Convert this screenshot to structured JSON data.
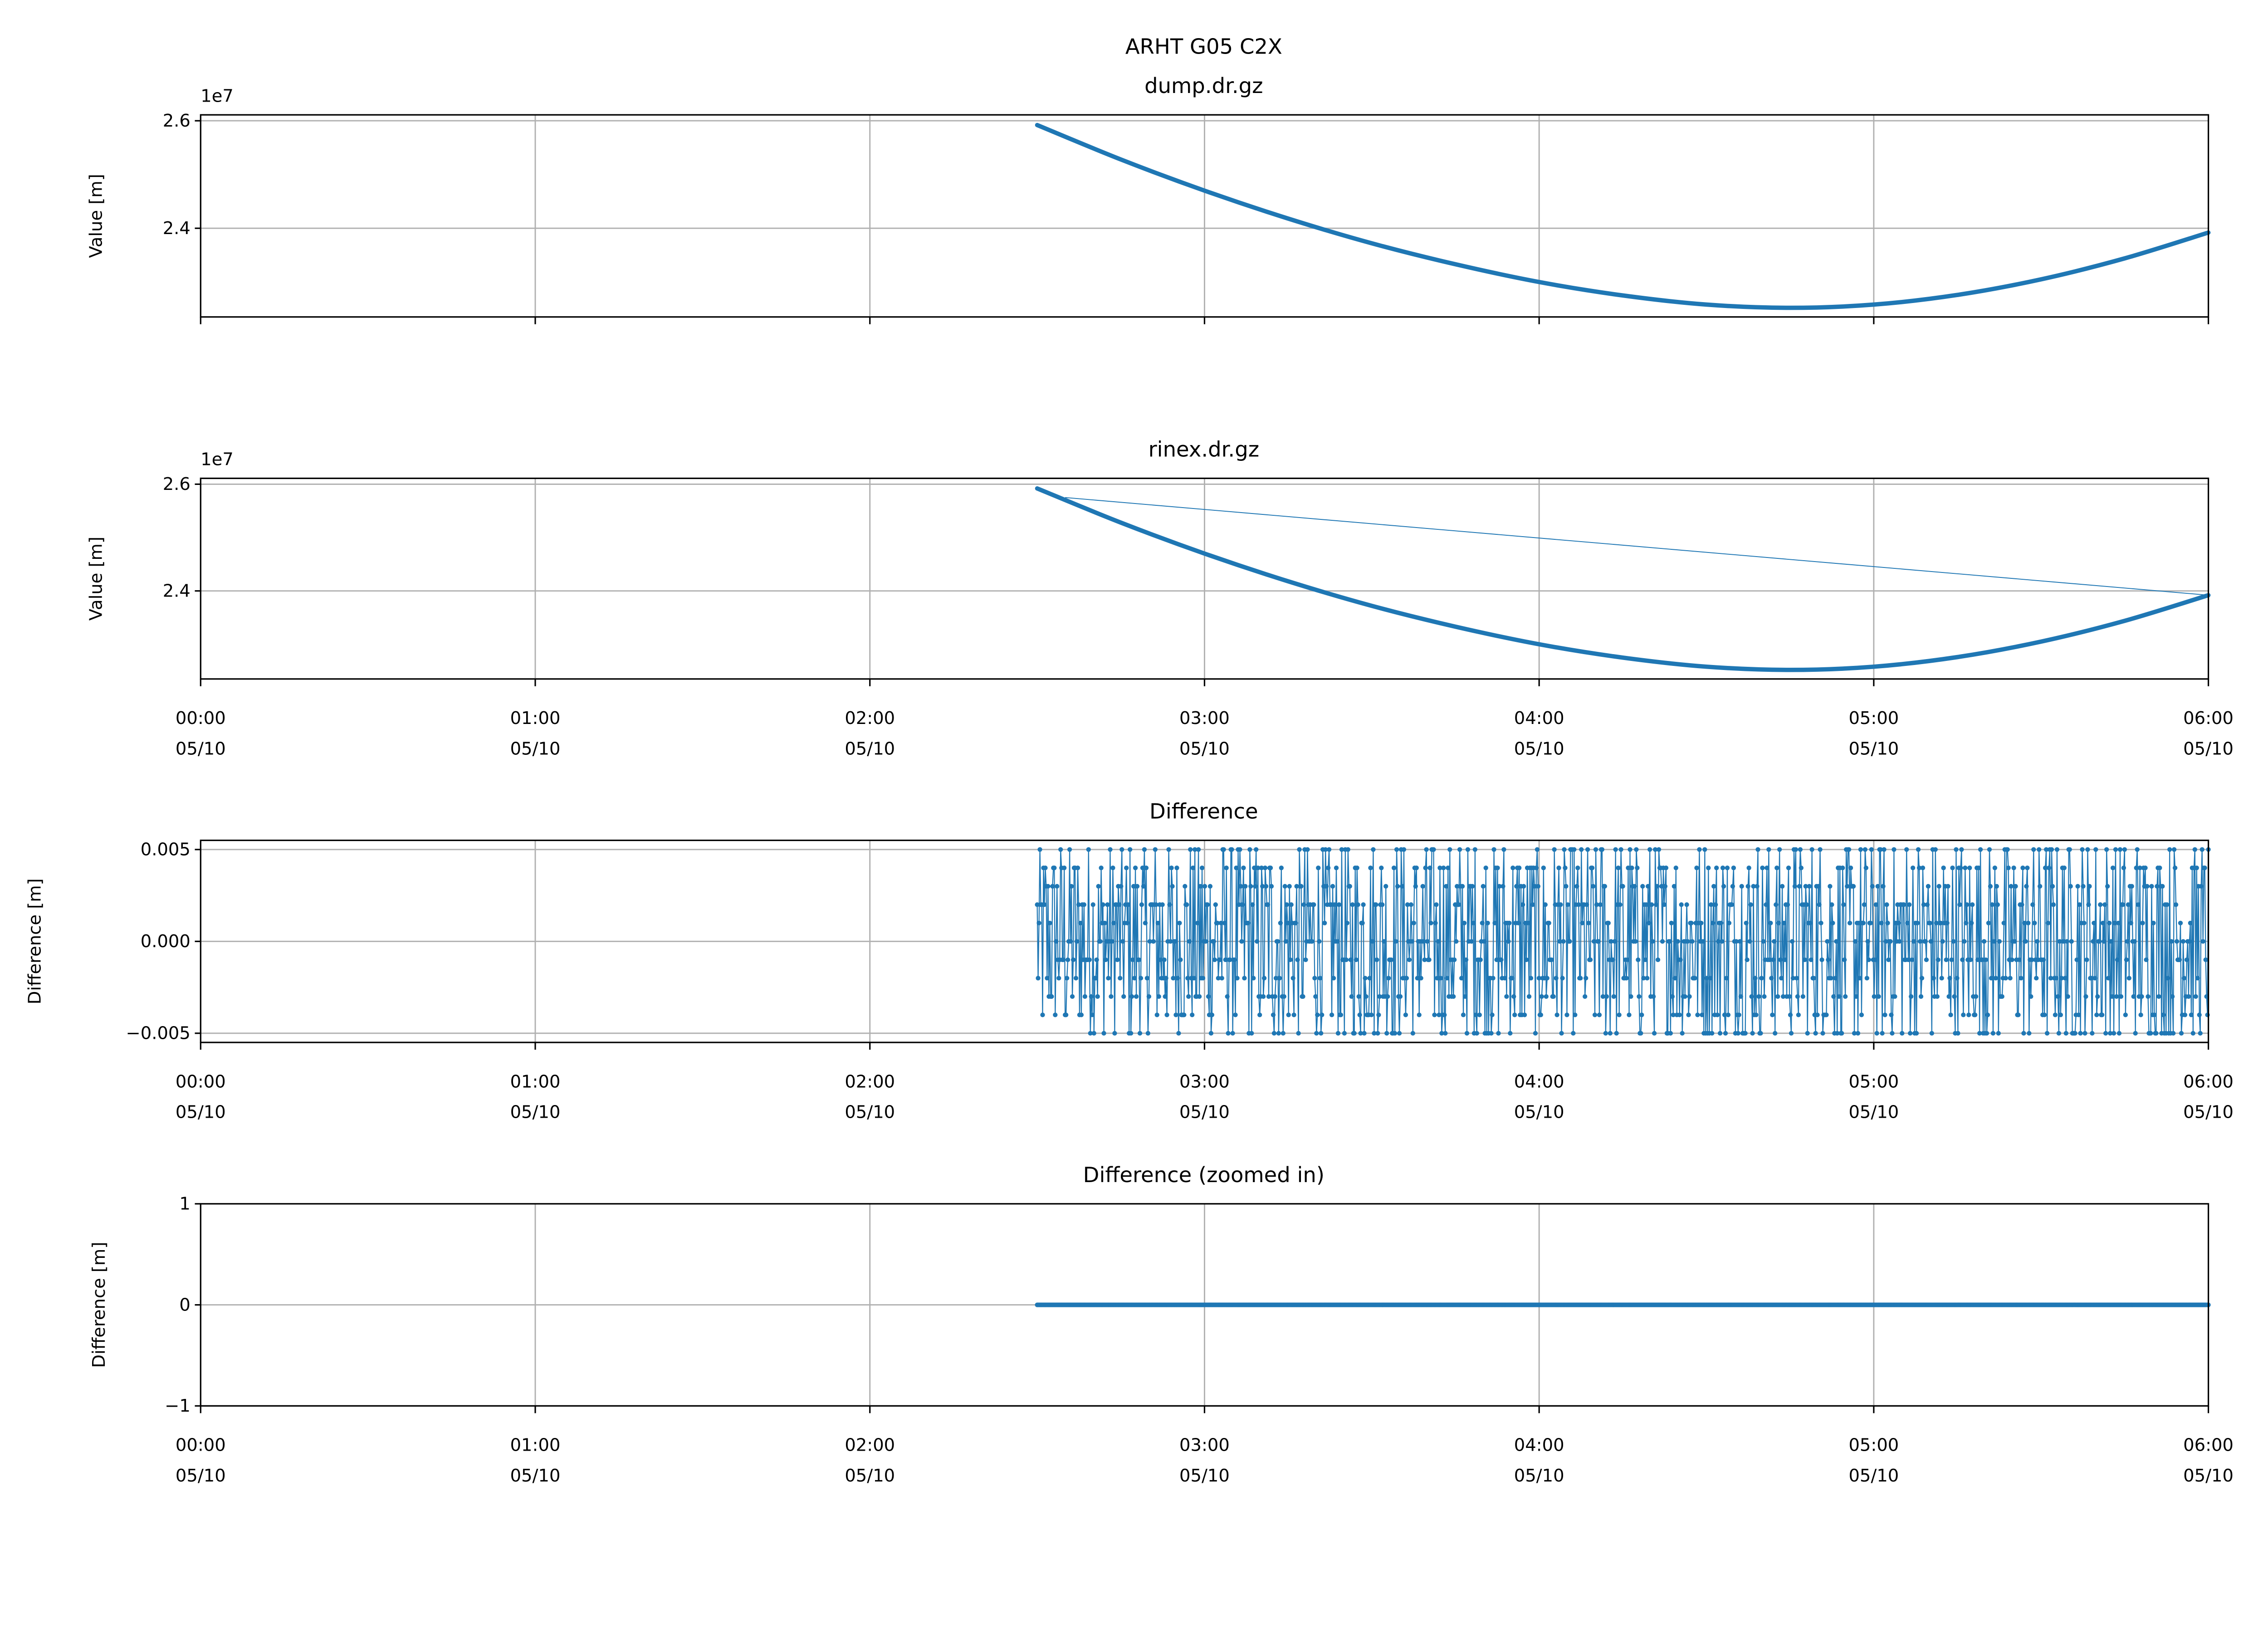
{
  "figure_title": "ARHT G05 C2X",
  "colors": {
    "series": "#1f77b4",
    "grid": "#b0b0b0"
  },
  "chart_data": [
    {
      "type": "line",
      "title": "dump.dr.gz",
      "ylabel": "Value [m]",
      "y_offset_label": "1e7",
      "ylim": [
        22350000,
        26110000
      ],
      "yticks": [
        {
          "v": 24000000,
          "label": "2.4"
        },
        {
          "v": 26000000,
          "label": "2.6"
        }
      ],
      "xlim": [
        "00:00",
        "06:00"
      ],
      "xticks_labels_shown": false,
      "grid": true,
      "x": [
        "02:30",
        "02:45",
        "03:00",
        "03:15",
        "03:30",
        "03:45",
        "04:00",
        "04:15",
        "04:30",
        "04:45",
        "05:00",
        "05:15",
        "05:30",
        "05:45",
        "06:00"
      ],
      "values": [
        25920000,
        25280000,
        24700000,
        24180000,
        23720000,
        23330000,
        23000000,
        22750000,
        22580000,
        22520000,
        22580000,
        22760000,
        23050000,
        23440000,
        23920000
      ]
    },
    {
      "type": "line",
      "title": "rinex.dr.gz",
      "ylabel": "Value [m]",
      "y_offset_label": "1e7",
      "ylim": [
        22350000,
        26110000
      ],
      "yticks": [
        {
          "v": 24000000,
          "label": "2.4"
        },
        {
          "v": 26000000,
          "label": "2.6"
        }
      ],
      "xlim": [
        "00:00",
        "06:00"
      ],
      "grid": true,
      "x": [
        "02:30",
        "02:45",
        "03:00",
        "03:15",
        "03:30",
        "03:45",
        "04:00",
        "04:15",
        "04:30",
        "04:45",
        "05:00",
        "05:15",
        "05:30",
        "05:45",
        "06:00"
      ],
      "values": [
        25920000,
        25280000,
        24700000,
        24180000,
        23720000,
        23330000,
        23000000,
        22750000,
        22580000,
        22520000,
        22580000,
        22760000,
        23050000,
        23440000,
        23920000
      ],
      "connector_segment": {
        "x": [
          "02:35",
          "06:00"
        ],
        "values": [
          25750000,
          23920000
        ]
      }
    },
    {
      "type": "line",
      "title": "Difference",
      "ylabel": "Difference [m]",
      "ylim": [
        -0.0055,
        0.0055
      ],
      "yticks": [
        {
          "v": 0.005,
          "label": "0.005"
        },
        {
          "v": 0,
          "label": "0.000"
        },
        {
          "v": -0.005,
          "label": "−0.005"
        }
      ],
      "xlim": [
        "00:00",
        "06:00"
      ],
      "grid": true,
      "x_range": [
        "02:30",
        "06:00"
      ],
      "value_levels": [
        -0.005,
        -0.004,
        -0.003,
        -0.002,
        -0.001,
        0,
        0.001,
        0.002,
        0.003,
        0.004,
        0.005
      ],
      "markers": true
    },
    {
      "type": "line",
      "title": "Difference (zoomed in)",
      "ylabel": "Difference [m]",
      "ylim": [
        -1,
        1
      ],
      "yticks": [
        {
          "v": 1,
          "label": "1"
        },
        {
          "v": 0,
          "label": "0"
        },
        {
          "v": -1,
          "label": "−1"
        }
      ],
      "xlim": [
        "00:00",
        "06:00"
      ],
      "grid": true,
      "x_range": [
        "02:30",
        "06:00"
      ],
      "values_constant": 0,
      "markers": true
    }
  ],
  "xticks": [
    {
      "time": "00:00",
      "date": "05/10"
    },
    {
      "time": "01:00",
      "date": "05/10"
    },
    {
      "time": "02:00",
      "date": "05/10"
    },
    {
      "time": "03:00",
      "date": "05/10"
    },
    {
      "time": "04:00",
      "date": "05/10"
    },
    {
      "time": "05:00",
      "date": "05/10"
    },
    {
      "time": "06:00",
      "date": "05/10"
    }
  ]
}
